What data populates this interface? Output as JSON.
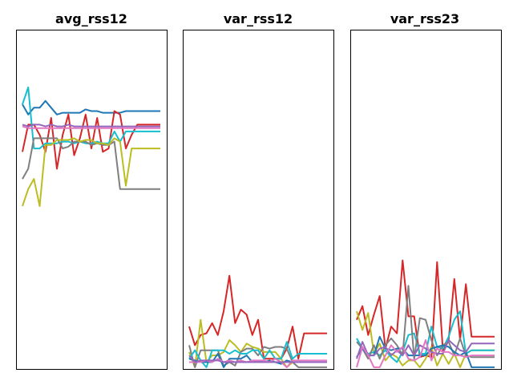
{
  "figure": {
    "background": "#ffffff"
  },
  "chart_data": [
    {
      "type": "line",
      "title": "avg_rss12",
      "xlabel": "",
      "ylabel": "",
      "ylim": [
        0,
        1
      ],
      "grid": false,
      "axis_ticks": false,
      "x": [
        0,
        1,
        2,
        3,
        4,
        5,
        6,
        7,
        8,
        9,
        10,
        11,
        12,
        13,
        14,
        15,
        16,
        17,
        18,
        19,
        20,
        21,
        22,
        23,
        24
      ],
      "series": [
        {
          "color": "#1f77b4",
          "values": [
            0.78,
            0.75,
            0.77,
            0.77,
            0.79,
            0.77,
            0.75,
            0.755,
            0.755,
            0.755,
            0.755,
            0.765,
            0.76,
            0.76,
            0.755,
            0.755,
            0.755,
            0.755,
            0.76,
            0.76,
            0.76,
            0.76,
            0.76,
            0.76,
            0.76
          ]
        },
        {
          "color": "#d62728",
          "values": [
            0.64,
            0.72,
            0.72,
            0.69,
            0.64,
            0.74,
            0.59,
            0.69,
            0.75,
            0.63,
            0.68,
            0.75,
            0.65,
            0.74,
            0.64,
            0.65,
            0.76,
            0.75,
            0.65,
            0.69,
            0.72,
            0.72,
            0.72,
            0.72,
            0.72
          ]
        },
        {
          "color": "#17becf",
          "values": [
            0.78,
            0.83,
            0.65,
            0.65,
            0.665,
            0.665,
            0.665,
            0.67,
            0.67,
            0.665,
            0.67,
            0.665,
            0.665,
            0.67,
            0.665,
            0.665,
            0.7,
            0.67,
            0.7,
            0.7,
            0.7,
            0.7,
            0.7,
            0.7,
            0.7
          ]
        },
        {
          "color": "#7f7f7f",
          "values": [
            0.56,
            0.59,
            0.68,
            0.68,
            0.68,
            0.68,
            0.68,
            0.65,
            0.655,
            0.67,
            0.67,
            0.67,
            0.66,
            0.665,
            0.66,
            0.66,
            0.67,
            0.53,
            0.53,
            0.53,
            0.53,
            0.53,
            0.53,
            0.53,
            0.53
          ]
        },
        {
          "color": "#bcbd22",
          "values": [
            0.48,
            0.53,
            0.56,
            0.48,
            0.66,
            0.66,
            0.675,
            0.675,
            0.675,
            0.68,
            0.67,
            0.675,
            0.675,
            0.665,
            0.665,
            0.66,
            0.68,
            0.67,
            0.54,
            0.65,
            0.65,
            0.65,
            0.65,
            0.65,
            0.65
          ]
        },
        {
          "color": "#9467bd",
          "values": [
            0.72,
            0.715,
            0.72,
            0.72,
            0.715,
            0.72,
            0.715,
            0.715,
            0.72,
            0.715,
            0.715,
            0.715,
            0.715,
            0.715,
            0.715,
            0.715,
            0.715,
            0.715,
            0.715,
            0.715,
            0.715,
            0.715,
            0.715,
            0.715,
            0.715
          ]
        },
        {
          "color": "#e377c2",
          "values": [
            0.715,
            0.71,
            0.71,
            0.71,
            0.71,
            0.71,
            0.71,
            0.71,
            0.71,
            0.71,
            0.71,
            0.71,
            0.71,
            0.71,
            0.71,
            0.71,
            0.71,
            0.71,
            0.71,
            0.71,
            0.71,
            0.71,
            0.71,
            0.71,
            0.71
          ]
        }
      ]
    },
    {
      "type": "line",
      "title": "var_rss12",
      "xlabel": "",
      "ylabel": "",
      "ylim": [
        0,
        1
      ],
      "grid": false,
      "axis_ticks": false,
      "x": [
        0,
        1,
        2,
        3,
        4,
        5,
        6,
        7,
        8,
        9,
        10,
        11,
        12,
        13,
        14,
        15,
        16,
        17,
        18,
        19,
        20,
        21,
        22,
        23,
        24
      ],
      "series": [
        {
          "color": "#d62728",
          "values": [
            0.125,
            0.07,
            0.1,
            0.105,
            0.135,
            0.1,
            0.17,
            0.275,
            0.135,
            0.175,
            0.16,
            0.1,
            0.145,
            0.03,
            0.03,
            0.03,
            0.03,
            0.06,
            0.125,
            0.03,
            0.105,
            0.105,
            0.105,
            0.105,
            0.105
          ]
        },
        {
          "color": "#bcbd22",
          "values": [
            0.05,
            0.005,
            0.145,
            0.02,
            0.04,
            0.04,
            0.05,
            0.085,
            0.07,
            0.05,
            0.075,
            0.065,
            0.06,
            0.05,
            0.05,
            0.05,
            0.03,
            0.005,
            0.02,
            0.02,
            0.02,
            0.02,
            0.02,
            0.02,
            0.02
          ]
        },
        {
          "color": "#7f7f7f",
          "values": [
            0.07,
            0.005,
            0.055,
            0.055,
            0.055,
            0.055,
            0.01,
            0.02,
            0.01,
            0.05,
            0.06,
            0.06,
            0.04,
            0.065,
            0.06,
            0.065,
            0.065,
            0.06,
            0.02,
            0.005,
            0.005,
            0.005,
            0.005,
            0.005,
            0.005
          ]
        },
        {
          "color": "#17becf",
          "values": [
            0.03,
            0.055,
            0.025,
            0.005,
            0.055,
            0.055,
            0.055,
            0.045,
            0.055,
            0.045,
            0.045,
            0.055,
            0.055,
            0.03,
            0.055,
            0.03,
            0.03,
            0.08,
            0.03,
            0.045,
            0.045,
            0.045,
            0.045,
            0.045,
            0.045
          ]
        },
        {
          "color": "#1f77b4",
          "values": [
            0.03,
            0.025,
            0.02,
            0.02,
            0.02,
            0.045,
            0.005,
            0.03,
            0.03,
            0.03,
            0.04,
            0.02,
            0.025,
            0.02,
            0.025,
            0.02,
            0.015,
            0.025,
            0.02,
            0.02,
            0.02,
            0.02,
            0.02,
            0.02,
            0.02
          ]
        },
        {
          "color": "#e377c2",
          "values": [
            0.02,
            0.02,
            0.02,
            0.025,
            0.02,
            0.03,
            0.02,
            0.025,
            0.02,
            0.025,
            0.02,
            0.025,
            0.025,
            0.025,
            0.02,
            0.03,
            0.02,
            0.005,
            0.025,
            0.025,
            0.025,
            0.025,
            0.025,
            0.025,
            0.025
          ]
        },
        {
          "color": "#9467bd",
          "values": [
            0.04,
            0.02,
            0.025,
            0.025,
            0.025,
            0.025,
            0.02,
            0.02,
            0.02,
            0.02,
            0.02,
            0.02,
            0.02,
            0.02,
            0.02,
            0.02,
            0.02,
            0.02,
            0.02,
            0.02,
            0.02,
            0.02,
            0.02,
            0.02,
            0.02
          ]
        }
      ]
    },
    {
      "type": "line",
      "title": "var_rss23",
      "xlabel": "",
      "ylabel": "",
      "ylim": [
        0,
        1
      ],
      "grid": false,
      "axis_ticks": false,
      "x": [
        0,
        1,
        2,
        3,
        4,
        5,
        6,
        7,
        8,
        9,
        10,
        11,
        12,
        13,
        14,
        15,
        16,
        17,
        18,
        19,
        20,
        21,
        22,
        23,
        24
      ],
      "series": [
        {
          "color": "#d62728",
          "values": [
            0.145,
            0.185,
            0.1,
            0.16,
            0.215,
            0.06,
            0.125,
            0.105,
            0.32,
            0.155,
            0.155,
            0.035,
            0.04,
            0.035,
            0.315,
            0.055,
            0.085,
            0.265,
            0.085,
            0.25,
            0.095,
            0.095,
            0.095,
            0.095,
            0.095
          ]
        },
        {
          "color": "#bcbd22",
          "values": [
            0.17,
            0.115,
            0.165,
            0.045,
            0.075,
            0.025,
            0.045,
            0.035,
            0.01,
            0.025,
            0.025,
            0.005,
            0.03,
            0.065,
            0.01,
            0.045,
            0.015,
            0.045,
            0.005,
            0.045,
            0.055,
            0.055,
            0.055,
            0.055,
            0.055
          ]
        },
        {
          "color": "#17becf",
          "values": [
            0.09,
            0.06,
            0.045,
            0.05,
            0.04,
            0.055,
            0.035,
            0.02,
            0.05,
            0.1,
            0.105,
            0.045,
            0.045,
            0.125,
            0.065,
            0.06,
            0.095,
            0.145,
            0.17,
            0.045,
            0.055,
            0.055,
            0.055,
            0.055,
            0.055
          ]
        },
        {
          "color": "#7f7f7f",
          "values": [
            0.08,
            0.06,
            0.03,
            0.07,
            0.03,
            0.07,
            0.09,
            0.07,
            0.04,
            0.245,
            0.03,
            0.15,
            0.145,
            0.085,
            0.04,
            0.07,
            0.08,
            0.04,
            0.09,
            0.04,
            0.035,
            0.035,
            0.035,
            0.035,
            0.035
          ]
        },
        {
          "color": "#1f77b4",
          "values": [
            0.035,
            0.06,
            0.04,
            0.04,
            0.095,
            0.06,
            0.055,
            0.06,
            0.06,
            0.04,
            0.04,
            0.04,
            0.04,
            0.06,
            0.065,
            0.07,
            0.065,
            0.05,
            0.04,
            0.05,
            0.005,
            0.005,
            0.005,
            0.005,
            0.005
          ]
        },
        {
          "color": "#9467bd",
          "values": [
            0.03,
            0.08,
            0.04,
            0.04,
            0.06,
            0.065,
            0.04,
            0.055,
            0.04,
            0.07,
            0.04,
            0.07,
            0.06,
            0.05,
            0.045,
            0.045,
            0.085,
            0.07,
            0.055,
            0.05,
            0.075,
            0.075,
            0.075,
            0.075,
            0.075
          ]
        },
        {
          "color": "#e377c2",
          "values": [
            0.005,
            0.065,
            0.04,
            0.005,
            0.005,
            0.04,
            0.07,
            0.05,
            0.065,
            0.03,
            0.025,
            0.035,
            0.085,
            0.025,
            0.06,
            0.05,
            0.05,
            0.04,
            0.04,
            0.035,
            0.04,
            0.04,
            0.04,
            0.04,
            0.04
          ]
        }
      ]
    }
  ]
}
